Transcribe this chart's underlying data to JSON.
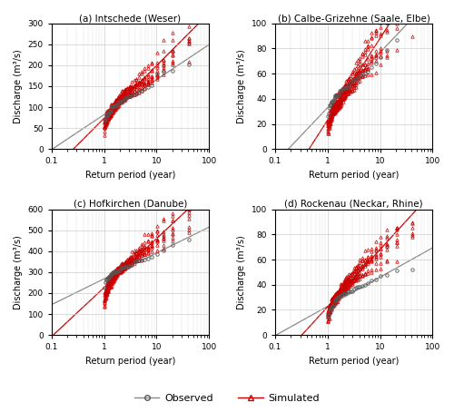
{
  "panels": [
    {
      "title": "(a) Intschede (Weser)",
      "ylabel": "Discharge (m³/s)",
      "xlabel": "Return period (year)",
      "ylim": [
        0,
        300
      ],
      "yticks": [
        0,
        50,
        100,
        150,
        200,
        250,
        300
      ],
      "xlim_lo": 0.1,
      "xlim_hi": 100,
      "obs_curve": {
        "a": 140,
        "b": -0.38
      },
      "sim_curve": {
        "a": 165,
        "b": -0.45
      },
      "obs_fit_slope": -55,
      "obs_fit_intercept": 115,
      "sim_fit_slope": -75,
      "sim_fit_intercept": 110
    },
    {
      "title": "(b) Calbe-Grizehne (Saale, Elbe)",
      "ylabel": "Discharge (m³/s)",
      "xlabel": "Return period (year)",
      "ylim": [
        0,
        100
      ],
      "yticks": [
        0,
        20,
        40,
        60,
        80,
        100
      ],
      "xlim_lo": 0.1,
      "xlim_hi": 100,
      "obs_curve": {
        "a": 52,
        "b": -0.28
      },
      "sim_curve": {
        "a": 56,
        "b": -0.45
      },
      "obs_fit_slope": -18,
      "obs_fit_intercept": 47,
      "sim_fit_slope": -32,
      "sim_fit_intercept": 42
    },
    {
      "title": "(c) Hofkirchen (Danube)",
      "ylabel": "Discharge (m³/s)",
      "xlabel": "Return period (year)",
      "ylim": [
        0,
        600
      ],
      "yticks": [
        0,
        100,
        200,
        300,
        400,
        500,
        600
      ],
      "xlim_lo": 0.1,
      "xlim_hi": 100,
      "obs_curve": {
        "a": 295,
        "b": -0.18
      },
      "sim_curve": {
        "a": 345,
        "b": -0.22
      },
      "obs_fit_slope": -65,
      "obs_fit_intercept": 280,
      "sim_fit_slope": -90,
      "sim_fit_intercept": 310
    },
    {
      "title": "(d) Rockenau (Neckar, Rhine)",
      "ylabel": "Discharge (m³/s)",
      "xlabel": "Return period (year)",
      "ylim": [
        0,
        100
      ],
      "yticks": [
        0,
        20,
        40,
        60,
        80,
        100
      ],
      "xlim_lo": 0.1,
      "xlim_hi": 100,
      "obs_curve": {
        "a": 40,
        "b": -0.3
      },
      "sim_curve": {
        "a": 48,
        "b": -0.4
      },
      "obs_fit_slope": -15,
      "obs_fit_intercept": 37,
      "sim_fit_slope": -22,
      "sim_fit_intercept": 42
    }
  ],
  "obs_color": "#555555",
  "sim_color": "#cc0000",
  "obs_line_color": "#888888",
  "sim_line_color": "#cc0000",
  "legend_labels": [
    "Observed",
    "Simulated"
  ],
  "fig_background": "#ffffff",
  "n_years": 40,
  "n_sim": 10
}
